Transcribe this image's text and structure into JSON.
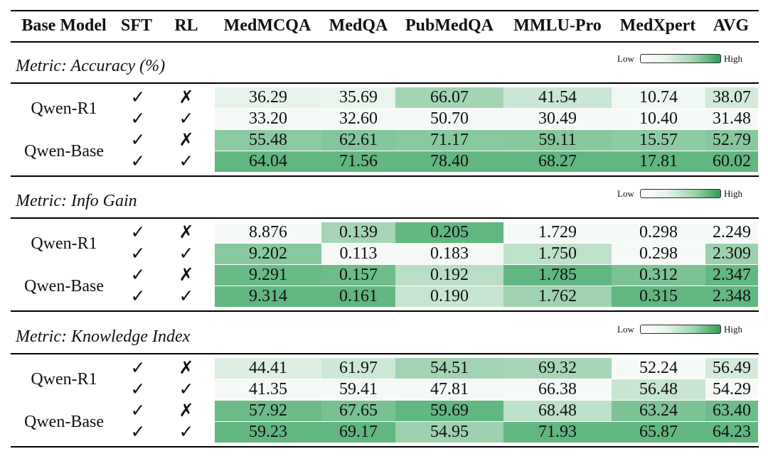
{
  "headers": {
    "base_model": "Base Model",
    "sft": "SFT",
    "rl": "RL",
    "cols": [
      "MedMCQA",
      "MedQA",
      "PubMedQA",
      "MMLU-Pro",
      "MedXpert",
      "AVG"
    ]
  },
  "legend": {
    "low": "Low",
    "high": "High"
  },
  "marks": {
    "check": "✓",
    "cross": "✗"
  },
  "model_labels": [
    "Qwen-R1",
    "Qwen-Base"
  ],
  "sections": [
    {
      "title": "Metric: Accuracy (%)",
      "rows": [
        {
          "sft": "check",
          "rl": "cross",
          "cells": [
            "36.29",
            "35.69",
            "66.07",
            "41.54",
            "10.74",
            "38.07"
          ]
        },
        {
          "sft": "check",
          "rl": "check",
          "cells": [
            "33.20",
            "32.60",
            "50.70",
            "30.49",
            "10.40",
            "31.48"
          ]
        },
        {
          "sft": "check",
          "rl": "cross",
          "cells": [
            "55.48",
            "62.61",
            "71.17",
            "59.11",
            "15.57",
            "52.79"
          ]
        },
        {
          "sft": "check",
          "rl": "check",
          "cells": [
            "64.04",
            "71.56",
            "78.40",
            "68.27",
            "17.81",
            "60.02"
          ]
        }
      ]
    },
    {
      "title": "Metric: Info Gain",
      "rows": [
        {
          "sft": "check",
          "rl": "cross",
          "cells": [
            "8.876",
            "0.139",
            "0.205",
            "1.729",
            "0.298",
            "2.249"
          ]
        },
        {
          "sft": "check",
          "rl": "check",
          "cells": [
            "9.202",
            "0.113",
            "0.183",
            "1.750",
            "0.298",
            "2.309"
          ]
        },
        {
          "sft": "check",
          "rl": "cross",
          "cells": [
            "9.291",
            "0.157",
            "0.192",
            "1.785",
            "0.312",
            "2.347"
          ]
        },
        {
          "sft": "check",
          "rl": "check",
          "cells": [
            "9.314",
            "0.161",
            "0.190",
            "1.762",
            "0.315",
            "2.348"
          ]
        }
      ]
    },
    {
      "title": "Metric: Knowledge Index",
      "rows": [
        {
          "sft": "check",
          "rl": "cross",
          "cells": [
            "44.41",
            "61.97",
            "54.51",
            "69.32",
            "52.24",
            "56.49"
          ]
        },
        {
          "sft": "check",
          "rl": "check",
          "cells": [
            "41.35",
            "59.41",
            "47.81",
            "66.38",
            "56.48",
            "54.29"
          ]
        },
        {
          "sft": "check",
          "rl": "cross",
          "cells": [
            "57.92",
            "67.65",
            "59.69",
            "68.48",
            "63.24",
            "63.40"
          ]
        },
        {
          "sft": "check",
          "rl": "check",
          "cells": [
            "59.23",
            "69.17",
            "54.95",
            "71.93",
            "65.87",
            "64.23"
          ]
        }
      ]
    }
  ],
  "colors": {
    "heat_low": "#ffffff",
    "heat_high": "#2e9e55"
  },
  "chart_data": {
    "type": "heatmap",
    "columns": [
      "MedMCQA",
      "MedQA",
      "PubMedQA",
      "MMLU-Pro",
      "MedXpert",
      "AVG"
    ],
    "row_labels": [
      "Qwen-R1",
      "Qwen-R1",
      "Qwen-Base",
      "Qwen-Base"
    ],
    "color_scale": "per-column green, Low (white) to High (green)",
    "legend_placement": "top-right of each metric block"
  }
}
